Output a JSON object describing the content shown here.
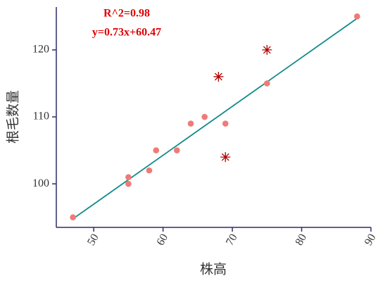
{
  "chart_data": {
    "type": "scatter",
    "xlabel": "株高",
    "ylabel": "根毛数量",
    "annotations": [
      "R^2=0.98",
      "y=0.73x+60.47"
    ],
    "xlim": [
      44.6,
      90
    ],
    "ylim": [
      93.5,
      126.4
    ],
    "xticks": [
      50,
      60,
      70,
      80,
      90
    ],
    "yticks": [
      100,
      110,
      120
    ],
    "series": [
      {
        "color": "#f07a78",
        "marker": "circle",
        "x": [
          47,
          55,
          55,
          58,
          59,
          62,
          64,
          66,
          69,
          75,
          88
        ],
        "values": [
          95,
          101,
          100,
          102,
          105,
          105,
          109,
          110,
          109,
          115,
          125
        ]
      },
      {
        "color": "#b00000",
        "marker": "star",
        "x": [
          68,
          75,
          69
        ],
        "values": [
          116,
          120,
          104
        ]
      }
    ],
    "fit": {
      "color": "#138a8a",
      "x": [
        47,
        88
      ],
      "values": [
        94.78,
        124.71
      ]
    }
  }
}
